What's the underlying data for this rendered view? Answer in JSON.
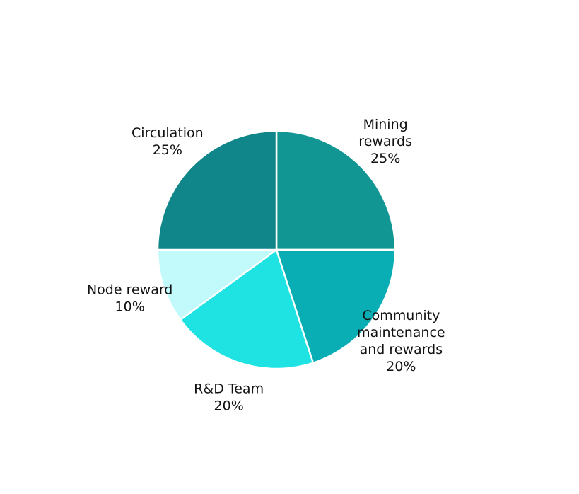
{
  "chart_data": {
    "type": "pie",
    "title": "",
    "start_direction": "clockwise-from-top",
    "slices": [
      {
        "label": [
          "Mining",
          "rewards"
        ],
        "value": 25,
        "display": "25%",
        "color": "#119694"
      },
      {
        "label": [
          "Community",
          "maintenance",
          "and rewards"
        ],
        "value": 20,
        "display": "20%",
        "color": "#08aeb4"
      },
      {
        "label": [
          "R&D Team"
        ],
        "value": 20,
        "display": "20%",
        "color": "#1fe3e3"
      },
      {
        "label": [
          "Node reward"
        ],
        "value": 10,
        "display": "10%",
        "color": "#c2fafc"
      },
      {
        "label": [
          "Circulation"
        ],
        "value": 25,
        "display": "25%",
        "color": "#10868a"
      }
    ]
  }
}
